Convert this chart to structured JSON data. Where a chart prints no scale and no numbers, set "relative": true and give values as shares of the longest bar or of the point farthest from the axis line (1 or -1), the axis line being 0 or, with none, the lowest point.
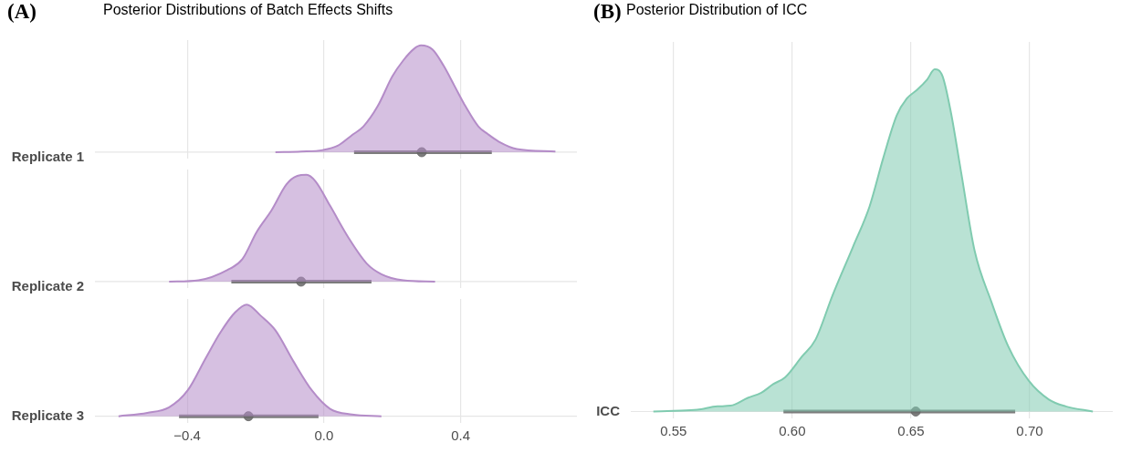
{
  "chart_data": [
    {
      "type": "area",
      "title": "Posterior Distributions of Batch Effects Shifts",
      "annotations": [
        "(A)"
      ],
      "ylabel": "Replicate 1",
      "relative": true,
      "xlim": [
        -0.67,
        0.74
      ],
      "xticks": [
        {
          "value": -0.4,
          "label": null
        },
        {
          "value": 0,
          "label": null
        },
        {
          "value": 0.4,
          "label": null
        }
      ],
      "tick_labels": false,
      "grid": true,
      "series": [
        {
          "type": "area",
          "color": "#b48cc8",
          "x": [
            -0.142,
            -0.067,
            -0.003,
            0.04,
            0.082,
            0.115,
            0.157,
            0.2,
            0.232,
            0.264,
            0.284,
            0.318,
            0.35,
            0.382,
            0.414,
            0.452,
            0.479,
            0.511,
            0.564,
            0.677
          ],
          "values": [
            0,
            0.006,
            0.02,
            0.06,
            0.16,
            0.24,
            0.43,
            0.71,
            0.86,
            0.97,
            1,
            0.96,
            0.81,
            0.62,
            0.43,
            0.24,
            0.17,
            0.1,
            0.03,
            0.006
          ]
        },
        {
          "type": "scatter",
          "color": "#666666",
          "marker": "circle",
          "x": [
            0.286
          ],
          "values": [
            0
          ],
          "xerrors": [
            [
              0.088,
              0.491
            ]
          ]
        }
      ]
    },
    {
      "type": "area",
      "ylabel": "Replicate 2",
      "relative": true,
      "xlim": [
        -0.67,
        0.74
      ],
      "xticks": [
        {
          "value": -0.4,
          "label": null
        },
        {
          "value": 0,
          "label": null
        },
        {
          "value": 0.4,
          "label": null
        }
      ],
      "tick_labels": false,
      "grid": true,
      "series": [
        {
          "type": "area",
          "color": "#b48cc8",
          "x": [
            -0.453,
            -0.367,
            -0.282,
            -0.239,
            -0.196,
            -0.153,
            -0.11,
            -0.078,
            -0.051,
            -0.025,
            0.018,
            0.072,
            0.125,
            0.168,
            0.232,
            0.325
          ],
          "values": [
            0,
            0.013,
            0.11,
            0.21,
            0.47,
            0.67,
            0.91,
            0.99,
            1,
            0.94,
            0.71,
            0.41,
            0.17,
            0.07,
            0.013,
            0
          ]
        },
        {
          "type": "scatter",
          "color": "#666666",
          "marker": "circle",
          "x": [
            -0.067
          ],
          "values": [
            0
          ],
          "xerrors": [
            [
              -0.271,
              0.139
            ]
          ]
        }
      ]
    },
    {
      "type": "area",
      "ylabel": "Replicate 3",
      "relative": true,
      "xlim": [
        -0.67,
        0.74
      ],
      "xticks": [
        {
          "value": -0.4,
          "label": "−0.4"
        },
        {
          "value": 0,
          "label": "0.0"
        },
        {
          "value": 0.4,
          "label": "0.4"
        }
      ],
      "tick_labels": "x",
      "grid": true,
      "series": [
        {
          "type": "area",
          "color": "#b48cc8",
          "x": [
            -0.601,
            -0.517,
            -0.453,
            -0.399,
            -0.346,
            -0.303,
            -0.26,
            -0.226,
            -0.185,
            -0.142,
            -0.089,
            -0.035,
            0.018,
            0.082,
            0.168
          ],
          "values": [
            0,
            0.03,
            0.08,
            0.23,
            0.52,
            0.75,
            0.93,
            1,
            0.9,
            0.77,
            0.49,
            0.23,
            0.066,
            0.016,
            0
          ]
        },
        {
          "type": "scatter",
          "color": "#666666",
          "marker": "circle",
          "x": [
            -0.221
          ],
          "values": [
            0
          ],
          "xerrors": [
            [
              -0.424,
              -0.016
            ]
          ]
        }
      ]
    },
    {
      "type": "area",
      "title": "Posterior Distribution of ICC",
      "annotations": [
        "(B)"
      ],
      "ylabel": "ICC",
      "relative": true,
      "xlim": [
        0.532,
        0.735
      ],
      "xticks": [
        0.55,
        {
          "value": 0.6,
          "label": "0.60"
        },
        0.65,
        {
          "value": 0.7,
          "label": "0.70"
        }
      ],
      "tick_labels": "x",
      "grid": true,
      "series": [
        {
          "type": "area",
          "color": "#80cbb0",
          "x": [
            0.5415,
            0.55,
            0.56,
            0.5685,
            0.574,
            0.5813,
            0.587,
            0.592,
            0.597,
            0.604,
            0.6098,
            0.617,
            0.6255,
            0.6326,
            0.6383,
            0.644,
            0.6483,
            0.6526,
            0.6568,
            0.66,
            0.6633,
            0.6668,
            0.6711,
            0.6768,
            0.6839,
            0.691,
            0.6996,
            0.7081,
            0.7152,
            0.7266
          ],
          "values": [
            0,
            0.002,
            0.005,
            0.015,
            0.017,
            0.04,
            0.055,
            0.08,
            0.1,
            0.16,
            0.21,
            0.34,
            0.48,
            0.6,
            0.74,
            0.865,
            0.915,
            0.94,
            0.97,
            1,
            0.98,
            0.875,
            0.7,
            0.47,
            0.32,
            0.19,
            0.09,
            0.035,
            0.015,
            0
          ]
        },
        {
          "type": "scatter",
          "color": "#666666",
          "marker": "circle",
          "x": [
            0.652
          ],
          "values": [
            0
          ],
          "xerrors": [
            [
              0.5963,
              0.6939
            ]
          ]
        }
      ]
    }
  ]
}
